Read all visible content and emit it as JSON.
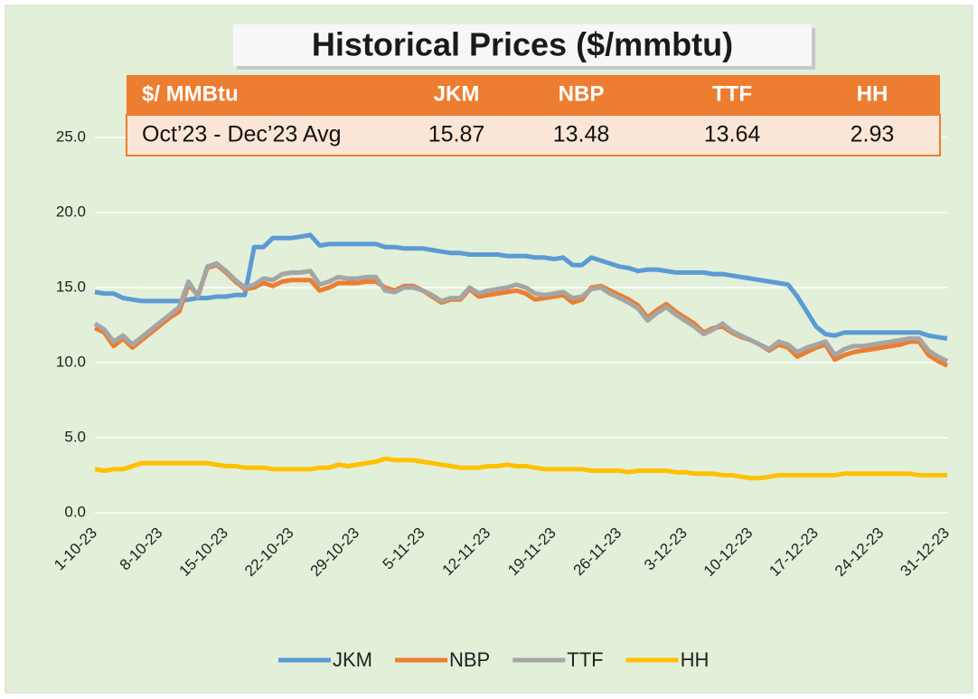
{
  "chart_data": {
    "type": "line",
    "title": "Historical Prices ($/mmbtu)",
    "table": {
      "header": [
        "$/ MMBtu",
        "JKM",
        "NBP",
        "TTF",
        "HH"
      ],
      "rows": [
        [
          "Oct’23 - Dec’23 Avg",
          "15.87",
          "13.48",
          "13.64",
          "2.93"
        ]
      ]
    },
    "categories": [
      "1-10-23",
      null,
      null,
      null,
      null,
      null,
      null,
      "8-10-23",
      null,
      null,
      null,
      null,
      null,
      null,
      "15-10-23",
      null,
      null,
      null,
      null,
      null,
      null,
      "22-10-23",
      null,
      null,
      null,
      null,
      null,
      null,
      "29-10-23",
      null,
      null,
      null,
      null,
      null,
      null,
      "5-11-23",
      null,
      null,
      null,
      null,
      null,
      null,
      "12-11-23",
      null,
      null,
      null,
      null,
      null,
      null,
      "19-11-23",
      null,
      null,
      null,
      null,
      null,
      null,
      "26-11-23",
      null,
      null,
      null,
      null,
      null,
      null,
      "3-12-23",
      null,
      null,
      null,
      null,
      null,
      null,
      "10-12-23",
      null,
      null,
      null,
      null,
      null,
      null,
      "17-12-23",
      null,
      null,
      null,
      null,
      null,
      null,
      "24-12-23",
      null,
      null,
      null,
      null,
      null,
      null,
      "31-12-23"
    ],
    "series": [
      {
        "name": "JKM",
        "color": "#5b9bd5",
        "values": [
          14.7,
          14.6,
          14.6,
          14.3,
          14.2,
          14.1,
          14.1,
          14.1,
          14.1,
          14.1,
          14.2,
          14.3,
          14.3,
          14.4,
          14.4,
          14.5,
          14.5,
          17.7,
          17.7,
          18.3,
          18.3,
          18.3,
          18.4,
          18.5,
          17.8,
          17.9,
          17.9,
          17.9,
          17.9,
          17.9,
          17.9,
          17.7,
          17.7,
          17.6,
          17.6,
          17.6,
          17.5,
          17.4,
          17.3,
          17.3,
          17.2,
          17.2,
          17.2,
          17.2,
          17.1,
          17.1,
          17.1,
          17.0,
          17.0,
          16.9,
          17.0,
          16.5,
          16.5,
          17.0,
          16.8,
          16.6,
          16.4,
          16.3,
          16.1,
          16.2,
          16.2,
          16.1,
          16.0,
          16.0,
          16.0,
          16.0,
          15.9,
          15.9,
          15.8,
          15.7,
          15.6,
          15.5,
          15.4,
          15.3,
          15.2,
          14.4,
          13.4,
          12.4,
          11.9,
          11.8,
          12.0,
          12.0,
          12.0,
          12.0,
          12.0,
          12.0,
          12.0,
          12.0,
          12.0,
          11.8,
          11.7,
          11.6
        ]
      },
      {
        "name": "NBP",
        "color": "#ed7d31",
        "values": [
          12.3,
          12.0,
          11.1,
          11.6,
          11.0,
          11.5,
          12.0,
          12.5,
          13.0,
          13.4,
          15.2,
          14.5,
          16.3,
          16.5,
          16.0,
          15.4,
          14.9,
          15.0,
          15.3,
          15.1,
          15.4,
          15.5,
          15.5,
          15.5,
          14.8,
          15.0,
          15.3,
          15.3,
          15.3,
          15.4,
          15.4,
          15.0,
          14.8,
          15.1,
          15.1,
          14.8,
          14.4,
          14.0,
          14.2,
          14.2,
          14.9,
          14.4,
          14.5,
          14.6,
          14.7,
          14.8,
          14.6,
          14.2,
          14.3,
          14.4,
          14.5,
          14.0,
          14.2,
          15.0,
          15.1,
          14.8,
          14.5,
          14.2,
          13.8,
          13.0,
          13.5,
          13.9,
          13.4,
          13.0,
          12.6,
          12.0,
          12.3,
          12.4,
          12.0,
          11.7,
          11.5,
          11.2,
          10.8,
          11.2,
          11.0,
          10.4,
          10.7,
          11.0,
          11.2,
          10.2,
          10.5,
          10.7,
          10.8,
          10.9,
          11.0,
          11.1,
          11.2,
          11.4,
          11.4,
          10.5,
          10.1,
          9.8
        ]
      },
      {
        "name": "TTF",
        "color": "#a5a5a5",
        "values": [
          12.6,
          12.2,
          11.4,
          11.8,
          11.2,
          11.7,
          12.2,
          12.7,
          13.2,
          13.7,
          15.4,
          14.4,
          16.4,
          16.6,
          16.1,
          15.5,
          15.0,
          15.2,
          15.6,
          15.5,
          15.9,
          16.0,
          16.0,
          16.1,
          15.2,
          15.4,
          15.7,
          15.6,
          15.6,
          15.7,
          15.7,
          14.8,
          14.7,
          15.0,
          15.0,
          14.8,
          14.5,
          14.1,
          14.3,
          14.3,
          15.0,
          14.6,
          14.8,
          14.9,
          15.0,
          15.2,
          15.0,
          14.6,
          14.5,
          14.6,
          14.7,
          14.3,
          14.4,
          14.9,
          15.0,
          14.6,
          14.3,
          14.0,
          13.6,
          12.8,
          13.3,
          13.7,
          13.2,
          12.8,
          12.4,
          11.9,
          12.2,
          12.6,
          12.1,
          11.8,
          11.5,
          11.2,
          10.9,
          11.4,
          11.2,
          10.7,
          11.0,
          11.2,
          11.4,
          10.5,
          10.9,
          11.1,
          11.1,
          11.2,
          11.3,
          11.4,
          11.5,
          11.6,
          11.6,
          10.8,
          10.4,
          10.1
        ]
      },
      {
        "name": "HH",
        "color": "#ffc000",
        "values": [
          2.9,
          2.8,
          2.9,
          2.9,
          3.1,
          3.3,
          3.3,
          3.3,
          3.3,
          3.3,
          3.3,
          3.3,
          3.3,
          3.2,
          3.1,
          3.1,
          3.0,
          3.0,
          3.0,
          2.9,
          2.9,
          2.9,
          2.9,
          2.9,
          3.0,
          3.0,
          3.2,
          3.1,
          3.2,
          3.3,
          3.4,
          3.6,
          3.5,
          3.5,
          3.5,
          3.4,
          3.3,
          3.2,
          3.1,
          3.0,
          3.0,
          3.0,
          3.1,
          3.1,
          3.2,
          3.1,
          3.1,
          3.0,
          2.9,
          2.9,
          2.9,
          2.9,
          2.9,
          2.8,
          2.8,
          2.8,
          2.8,
          2.7,
          2.8,
          2.8,
          2.8,
          2.8,
          2.7,
          2.7,
          2.6,
          2.6,
          2.6,
          2.5,
          2.5,
          2.4,
          2.3,
          2.3,
          2.4,
          2.5,
          2.5,
          2.5,
          2.5,
          2.5,
          2.5,
          2.5,
          2.6,
          2.6,
          2.6,
          2.6,
          2.6,
          2.6,
          2.6,
          2.6,
          2.5,
          2.5,
          2.5,
          2.5
        ]
      }
    ],
    "ylim": [
      0,
      25
    ],
    "yticks": [
      {
        "value": 0,
        "label": "0.0"
      },
      {
        "value": 5,
        "label": "5.0"
      },
      {
        "value": 10,
        "label": "10.0"
      },
      {
        "value": 15,
        "label": "15.0"
      },
      {
        "value": 20,
        "label": "20.0"
      },
      {
        "value": 25,
        "label": "25.0"
      }
    ],
    "grid": true,
    "legend": "bottom"
  }
}
